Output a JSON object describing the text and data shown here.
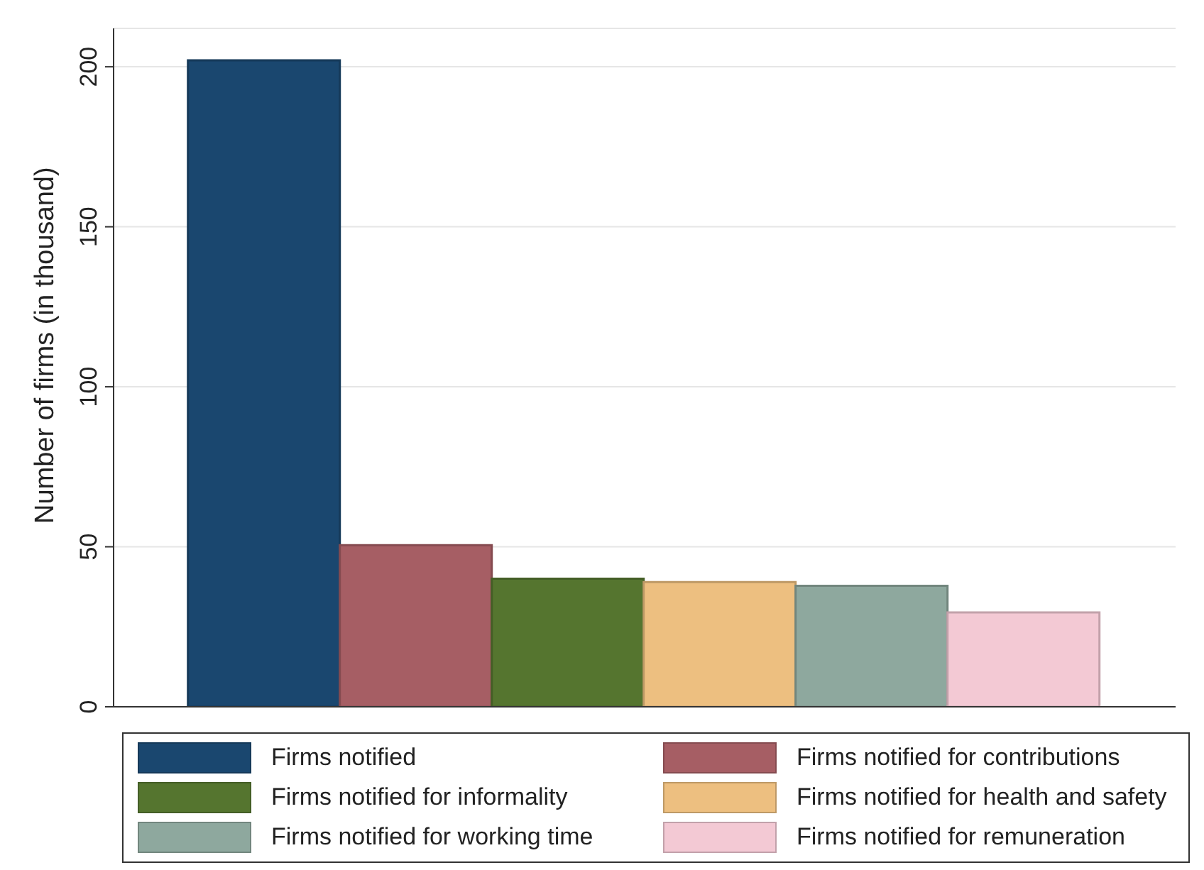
{
  "chart_data": {
    "type": "bar",
    "ylabel": "Number of firms (in thousand)",
    "categories": [
      null
    ],
    "series": [
      {
        "name": "Firms notified",
        "color": "#1a476f",
        "values": [
          202
        ]
      },
      {
        "name": "Firms notified for contributions",
        "color": "#a65e64",
        "values": [
          50.5
        ]
      },
      {
        "name": "Firms notified for informality",
        "color": "#55752f",
        "values": [
          40
        ]
      },
      {
        "name": "Firms notified for health and safety",
        "color": "#edbf80",
        "values": [
          39
        ]
      },
      {
        "name": "Firms notified for working time",
        "color": "#8ea89e",
        "values": [
          37.8
        ]
      },
      {
        "name": "Firms notified for remuneration",
        "color": "#f3c9d4",
        "values": [
          29.5
        ]
      }
    ],
    "ylim": [
      0,
      212
    ],
    "yticks": [
      0,
      50,
      100,
      150,
      200
    ],
    "grid": "y",
    "legend": "bottom"
  }
}
